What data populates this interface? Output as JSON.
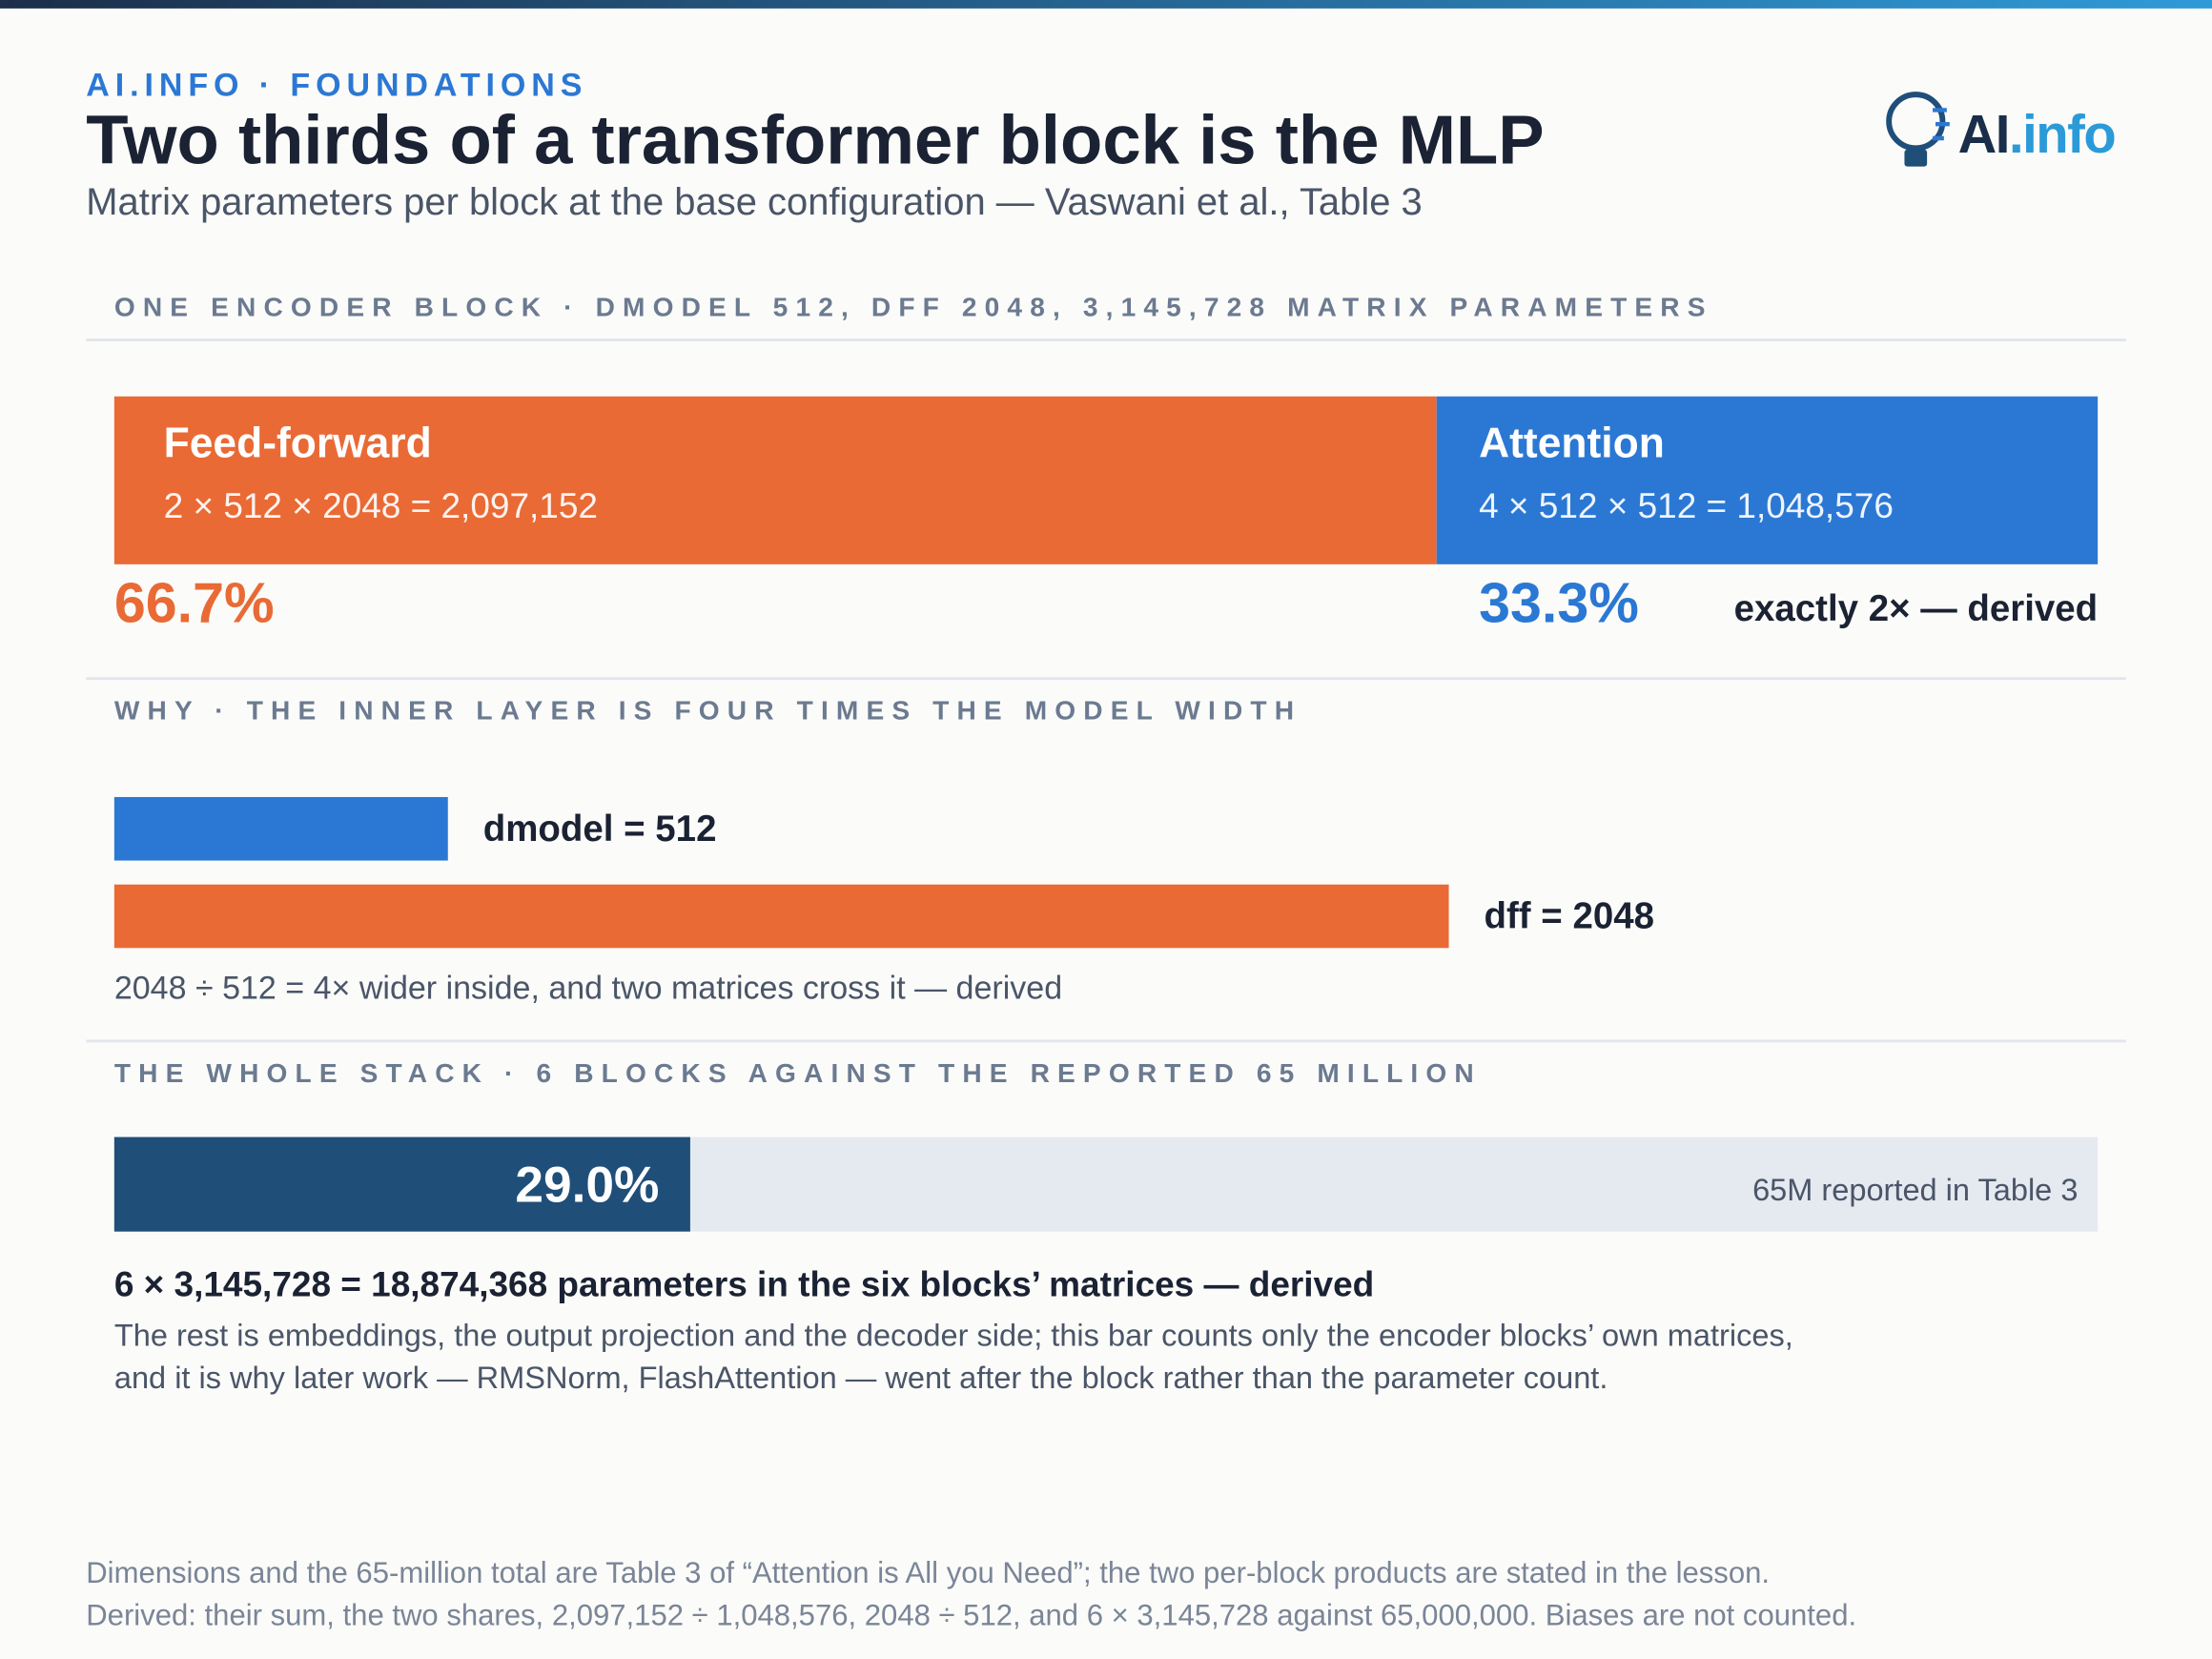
{
  "header": {
    "kicker": "AI.INFO · FOUNDATIONS",
    "title": "Two thirds of a transformer block is the MLP",
    "subtitle": "Matrix parameters per block at the base configuration — Vaswani et al., Table 3",
    "logo_a": "AI",
    "logo_b": ".info"
  },
  "block": {
    "heading": "ONE ENCODER BLOCK · DMODEL 512, DFF 2048, 3,145,728 MATRIX PARAMETERS",
    "segments": [
      {
        "name": "Feed-forward",
        "formula": "2 × 512 × 2048 = 2,097,152",
        "value": 2097152,
        "share": "66.7%",
        "color": "#e96a35"
      },
      {
        "name": "Attention",
        "formula": "4 × 512 × 512 = 1,048,576",
        "value": 1048576,
        "share": "33.3%",
        "color": "#2b78d4"
      }
    ],
    "note": "exactly 2× — derived"
  },
  "why": {
    "heading": "WHY · THE INNER LAYER IS FOUR TIMES THE MODEL WIDTH",
    "bars": [
      {
        "label": "dmodel = 512",
        "value": 512,
        "color": "#2b78d4"
      },
      {
        "label": "dff = 2048",
        "value": 2048,
        "color": "#e96a35"
      }
    ],
    "note": "2048 ÷ 512 = 4× wider inside, and two matrices cross it — derived"
  },
  "stack": {
    "heading": "THE WHOLE STACK · 6 BLOCKS AGAINST THE REPORTED 65 MILLION",
    "value": 18874368,
    "total": 65000000,
    "share": "29.0%",
    "color": "#1f4e79",
    "track_color": "#e5e9f0",
    "total_label": "65M reported in Table 3",
    "headline": "6 × 3,145,728 = 18,874,368 parameters in the six blocks’ matrices — derived",
    "body": [
      "The rest is embeddings, the output projection and the decoder side; this bar counts only the encoder blocks’ own matrices,",
      "and it is why later work — RMSNorm, FlashAttention — went after the block rather than the parameter count."
    ]
  },
  "footer": [
    "Dimensions and the 65-million total are Table 3 of “Attention is All you Need”; the two per-block products are stated in the lesson.",
    "Derived: their sum, the two shares, 2,097,152 ÷ 1,048,576, 2048 ÷ 512, and 6 × 3,145,728 against 65,000,000. Biases are not counted."
  ]
}
